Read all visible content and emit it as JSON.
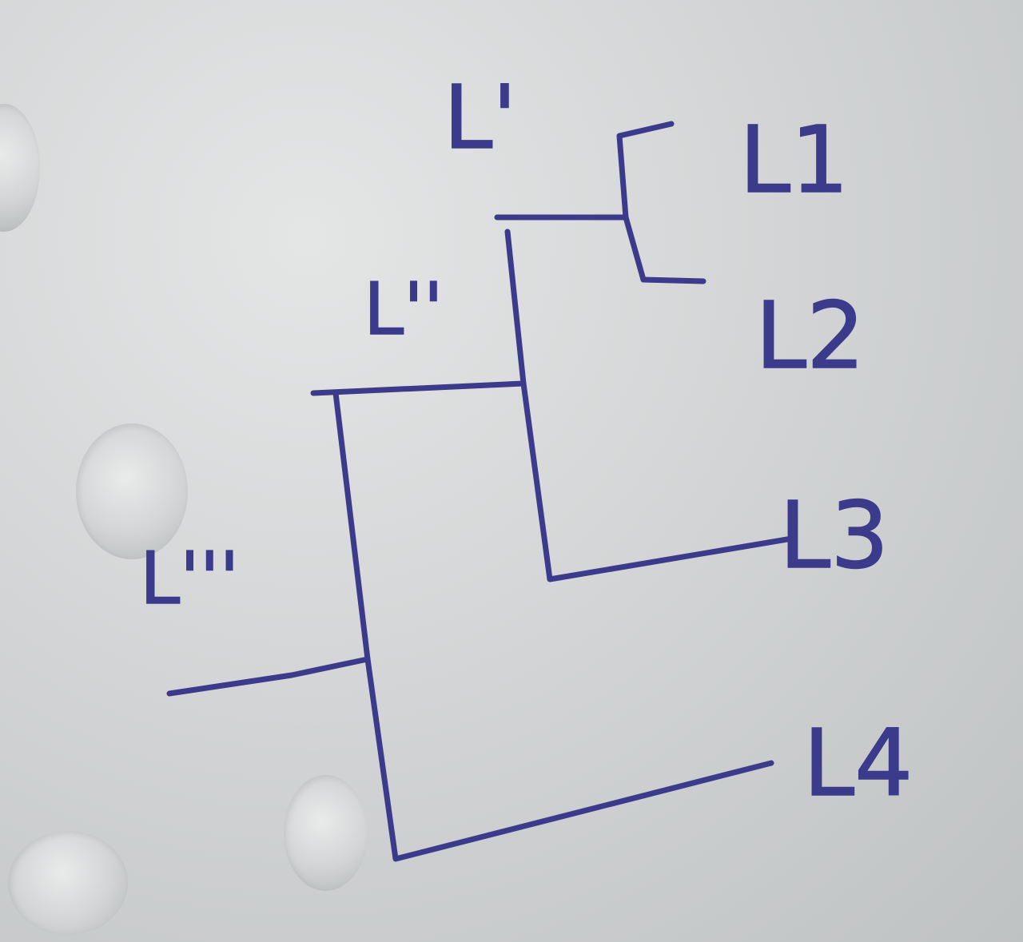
{
  "diagram": {
    "type": "dendrogram",
    "ink_color": "#3c3a8a",
    "leaves": [
      "L1",
      "L2",
      "L3",
      "L4"
    ],
    "internal_nodes": [
      "L'",
      "L''",
      "L'''"
    ],
    "merges": [
      {
        "node": "L'",
        "children": [
          "L1",
          "L2"
        ]
      },
      {
        "node": "L''",
        "children": [
          "L'",
          "L3"
        ]
      },
      {
        "node": "L'''",
        "children": [
          "L''",
          "L4"
        ]
      }
    ]
  }
}
